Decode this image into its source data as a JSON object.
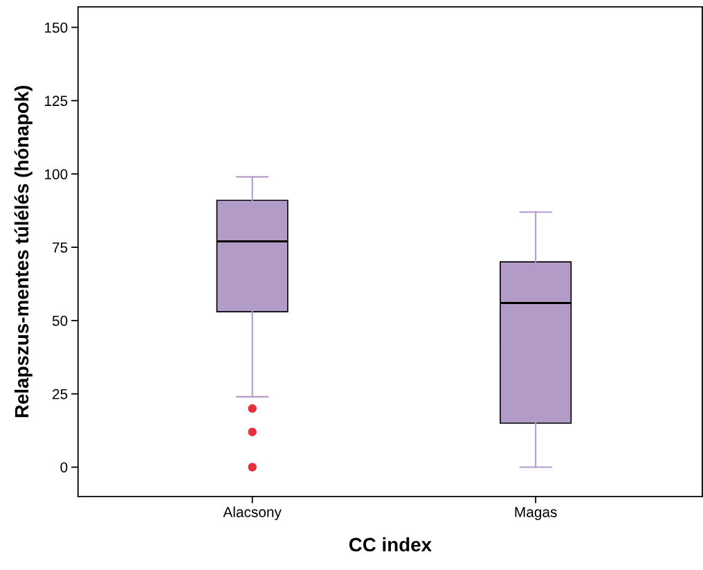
{
  "chart_data": {
    "type": "box",
    "xlabel": "CC index",
    "ylabel": "Relapszus-mentes túlélés (hónapok)",
    "categories": [
      "Alacsony",
      "Magas"
    ],
    "boxes": [
      {
        "low": 24,
        "q1": 53,
        "median": 77,
        "q3": 91,
        "high": 99,
        "outliers": [
          20,
          12,
          0
        ]
      },
      {
        "low": 0,
        "q1": 15,
        "median": 56,
        "q3": 70,
        "high": 87
      }
    ],
    "color": "#b39bc8",
    "ylim": [
      -10,
      157
    ],
    "yticks": [
      0,
      25,
      50,
      75,
      100,
      125,
      150
    ],
    "grid": false
  }
}
